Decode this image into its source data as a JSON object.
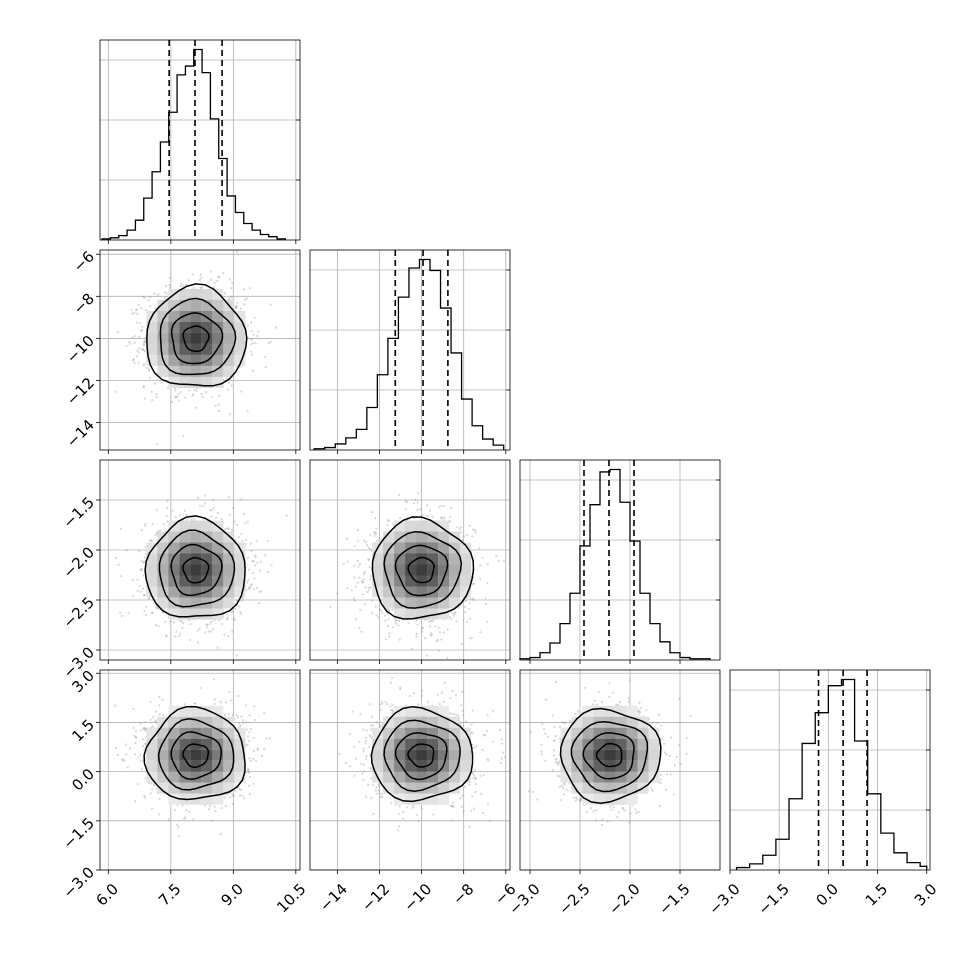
{
  "chart_data": {
    "type": "corner",
    "n_parameters": 4,
    "grid": true,
    "parameters": [
      {
        "index": 0,
        "mean": 8.1,
        "std": 0.6,
        "range": [
          5.8,
          10.6
        ],
        "ticks": [
          6.0,
          7.5,
          9.0,
          10.5
        ],
        "tick_labels": [
          "6.0",
          "7.5",
          "9.0",
          "10.5"
        ],
        "quantiles": [
          7.46,
          8.08,
          8.73
        ]
      },
      {
        "index": 1,
        "mean": -10.0,
        "std": 1.2,
        "range": [
          -15.3,
          -5.8
        ],
        "ticks": [
          -14,
          -12,
          -10,
          -8,
          -6
        ],
        "tick_labels": [
          "−14",
          "−12",
          "−10",
          "−8",
          "−6"
        ],
        "quantiles": [
          -11.25,
          -9.93,
          -8.75
        ]
      },
      {
        "index": 2,
        "mean": -2.2,
        "std": 0.25,
        "range": [
          -3.1,
          -1.1
        ],
        "ticks": [
          -3.0,
          -2.5,
          -2.0,
          -1.5
        ],
        "tick_labels": [
          "−3.0",
          "−2.5",
          "−2.0",
          "−1.5"
        ],
        "quantiles": [
          -2.46,
          -2.21,
          -1.96
        ]
      },
      {
        "index": 3,
        "mean": 0.5,
        "std": 0.7,
        "range": [
          -3.0,
          3.1
        ],
        "ticks": [
          -3.0,
          -1.5,
          0.0,
          1.5,
          3.0
        ],
        "tick_labels": [
          "−3.0",
          "−1.5",
          "0.0",
          "1.5",
          "3.0"
        ],
        "quantiles": [
          -0.3,
          0.45,
          1.18
        ]
      }
    ],
    "histograms": [
      {
        "param": 0,
        "bins": [
          5.85,
          6.05,
          6.25,
          6.45,
          6.65,
          6.85,
          7.05,
          7.25,
          7.45,
          7.65,
          7.85,
          8.05,
          8.25,
          8.45,
          8.65,
          8.85,
          9.05,
          9.25,
          9.45,
          9.65,
          9.85,
          10.05,
          10.25
        ],
        "counts": [
          1,
          2,
          4,
          9,
          18,
          38,
          62,
          89,
          116,
          150,
          158,
          173,
          152,
          110,
          74,
          40,
          25,
          15,
          9,
          5,
          3,
          1
        ]
      },
      {
        "param": 1,
        "bins": [
          -15.1,
          -14.6,
          -14.1,
          -13.6,
          -13.1,
          -12.6,
          -12.1,
          -11.6,
          -11.1,
          -10.6,
          -10.1,
          -9.6,
          -9.1,
          -8.6,
          -8.1,
          -7.6,
          -7.1,
          -6.6,
          -6.1
        ],
        "counts": [
          1,
          2,
          5,
          10,
          17,
          35,
          62,
          92,
          126,
          150,
          157,
          148,
          117,
          80,
          42,
          20,
          9,
          4
        ]
      },
      {
        "param": 2,
        "bins": [
          -3.1,
          -3.0,
          -2.9,
          -2.8,
          -2.7,
          -2.6,
          -2.5,
          -2.4,
          -2.3,
          -2.2,
          -2.1,
          -2.0,
          -1.9,
          -1.8,
          -1.7,
          -1.6,
          -1.5,
          -1.4,
          -1.3,
          -1.2
        ],
        "counts": [
          1,
          2,
          6,
          14,
          30,
          55,
          94,
          128,
          155,
          157,
          130,
          98,
          55,
          30,
          15,
          6,
          2,
          1,
          1
        ]
      },
      {
        "param": 3,
        "bins": [
          -2.8,
          -2.4,
          -2.0,
          -1.6,
          -1.2,
          -0.8,
          -0.4,
          0.0,
          0.4,
          0.8,
          1.2,
          1.6,
          2.0,
          2.4,
          2.8,
          3.0
        ],
        "counts": [
          2,
          5,
          12,
          25,
          58,
          103,
          128,
          150,
          155,
          105,
          62,
          30,
          14,
          6,
          3
        ]
      }
    ],
    "pairs": [
      {
        "x": 0,
        "y": 1
      },
      {
        "x": 0,
        "y": 2
      },
      {
        "x": 1,
        "y": 2
      },
      {
        "x": 0,
        "y": 3
      },
      {
        "x": 1,
        "y": 3
      },
      {
        "x": 2,
        "y": 3
      }
    ]
  }
}
